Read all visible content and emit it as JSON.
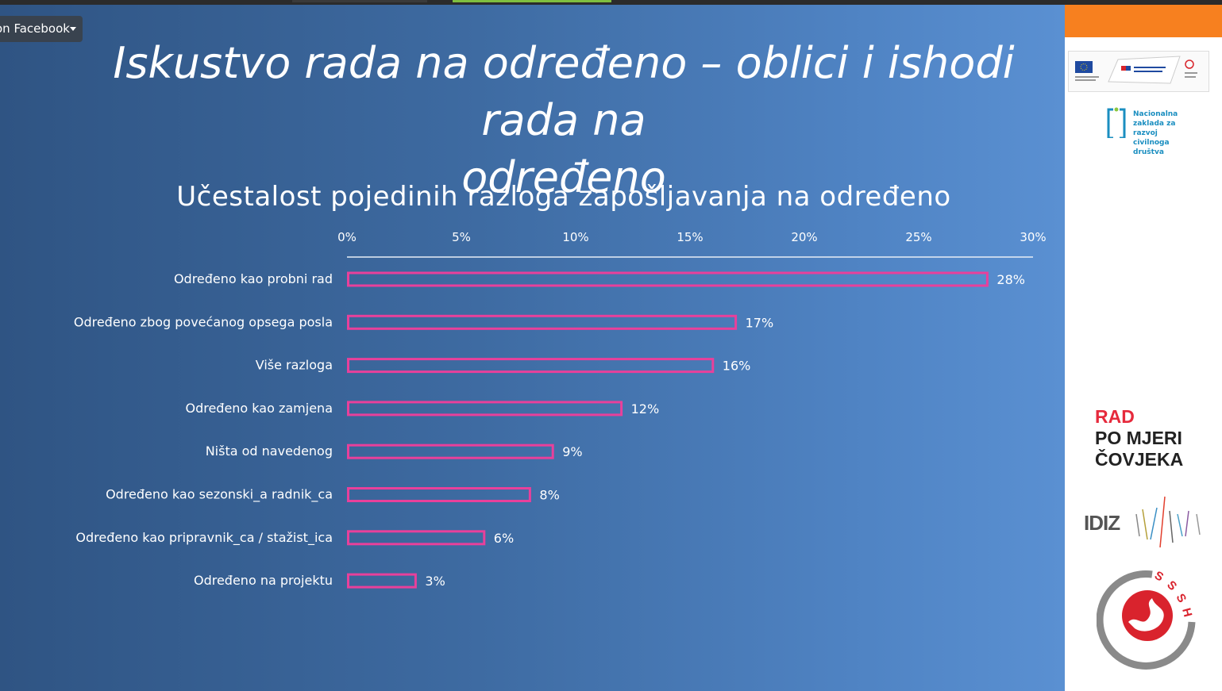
{
  "overlay": {
    "facebook_label": "on Facebook"
  },
  "slide": {
    "title": "Iskustvo rada na određeno – oblici i ishodi rada na određeno",
    "title_line1": "Iskustvo rada na određeno – oblici i ishodi rada na",
    "title_line2": "određeno"
  },
  "chart_data": {
    "type": "bar",
    "orientation": "horizontal",
    "title": "Učestalost pojedinih razloga zapošljavanja na određeno",
    "categories": [
      "Određeno kao probni rad",
      "Određeno zbog povećanog opsega posla",
      "Više razloga",
      "Određeno kao zamjena",
      "Ništa od navedenog",
      "Određeno kao sezonski_a radnik_ca",
      "Određeno kao pripravnik_ca / stažist_ica",
      "Određeno na projektu"
    ],
    "values": [
      28,
      17,
      16,
      12,
      9,
      8,
      6,
      3
    ],
    "value_labels": [
      "28%",
      "17%",
      "16%",
      "12%",
      "9%",
      "8%",
      "6%",
      "3%"
    ],
    "xlim": [
      0,
      30
    ],
    "x_ticks": [
      "0%",
      "5%",
      "10%",
      "15%",
      "20%",
      "25%",
      "30%"
    ],
    "axis_position": "top",
    "bar_color": "#e8409b",
    "bar_fill": "none",
    "grid": false,
    "legend": "none"
  },
  "sidebar": {
    "nz_text": "Nacionalna\nzaklada za\nrazvoj\ncivilnoga\ndruštva",
    "rad_line1": "RAD",
    "rad_line2": "PO MJERI",
    "rad_line3": "ČOVJEKA",
    "idiz_text": "IDIZ",
    "sssh_text": "SSSH"
  },
  "colors": {
    "accent_orange": "#f7801f",
    "bar_outline": "#e8409b",
    "rad_red": "#e62a3c"
  }
}
